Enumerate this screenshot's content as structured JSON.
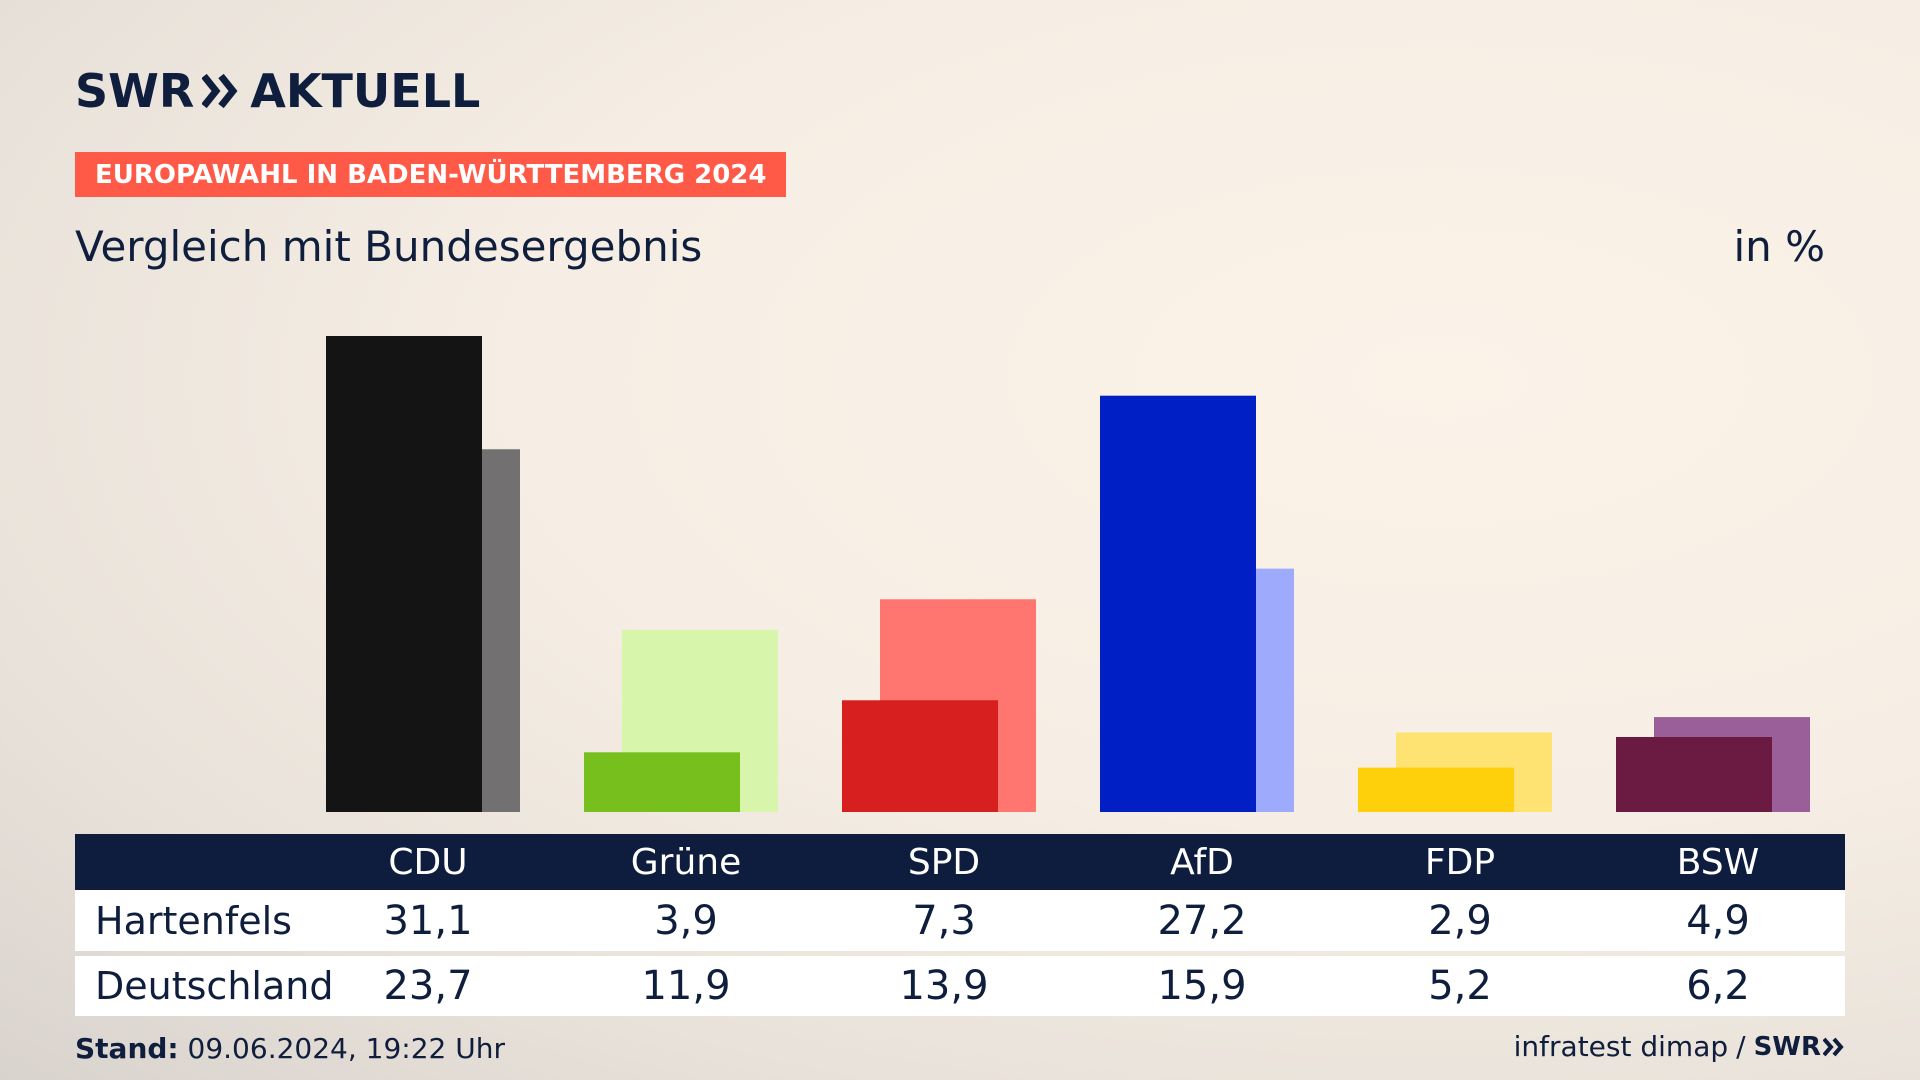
{
  "header": {
    "logo_brand": "SWR",
    "logo_word": "AKTUELL",
    "banner": "EUROPAWAHL IN BADEN-WÜRTTEMBERG 2024",
    "subtitle": "Vergleich mit Bundesergebnis",
    "unit": "in %"
  },
  "chart_data": {
    "type": "bar",
    "title": "Vergleich mit Bundesergebnis",
    "ylabel": "in %",
    "categories": [
      "CDU",
      "Grüne",
      "SPD",
      "AfD",
      "FDP",
      "BSW"
    ],
    "series": [
      {
        "name": "Hartenfels",
        "values": [
          31.1,
          3.9,
          7.3,
          27.2,
          2.9,
          4.9
        ],
        "display": [
          "31,1",
          "3,9",
          "7,3",
          "27,2",
          "2,9",
          "4,9"
        ],
        "colors": [
          "#141414",
          "#76bf1c",
          "#d71f1f",
          "#0020c6",
          "#fecf0b",
          "#6b1a41"
        ]
      },
      {
        "name": "Deutschland",
        "values": [
          23.7,
          11.9,
          13.9,
          15.9,
          5.2,
          6.2
        ],
        "display": [
          "23,7",
          "11,9",
          "13,9",
          "15,9",
          "5,2",
          "6,2"
        ],
        "colors": [
          "#727070",
          "#d8f6ab",
          "#ff7570",
          "#9eaafc",
          "#fee373",
          "#9a5e98"
        ]
      }
    ],
    "ylim": [
      0,
      31.1
    ],
    "grid": false,
    "legend": "table-below"
  },
  "footer": {
    "stand_label": "Stand:",
    "stand_value": "09.06.2024, 19:22 Uhr",
    "source": "infratest dimap",
    "separator": "/",
    "source_brand": "SWR"
  }
}
